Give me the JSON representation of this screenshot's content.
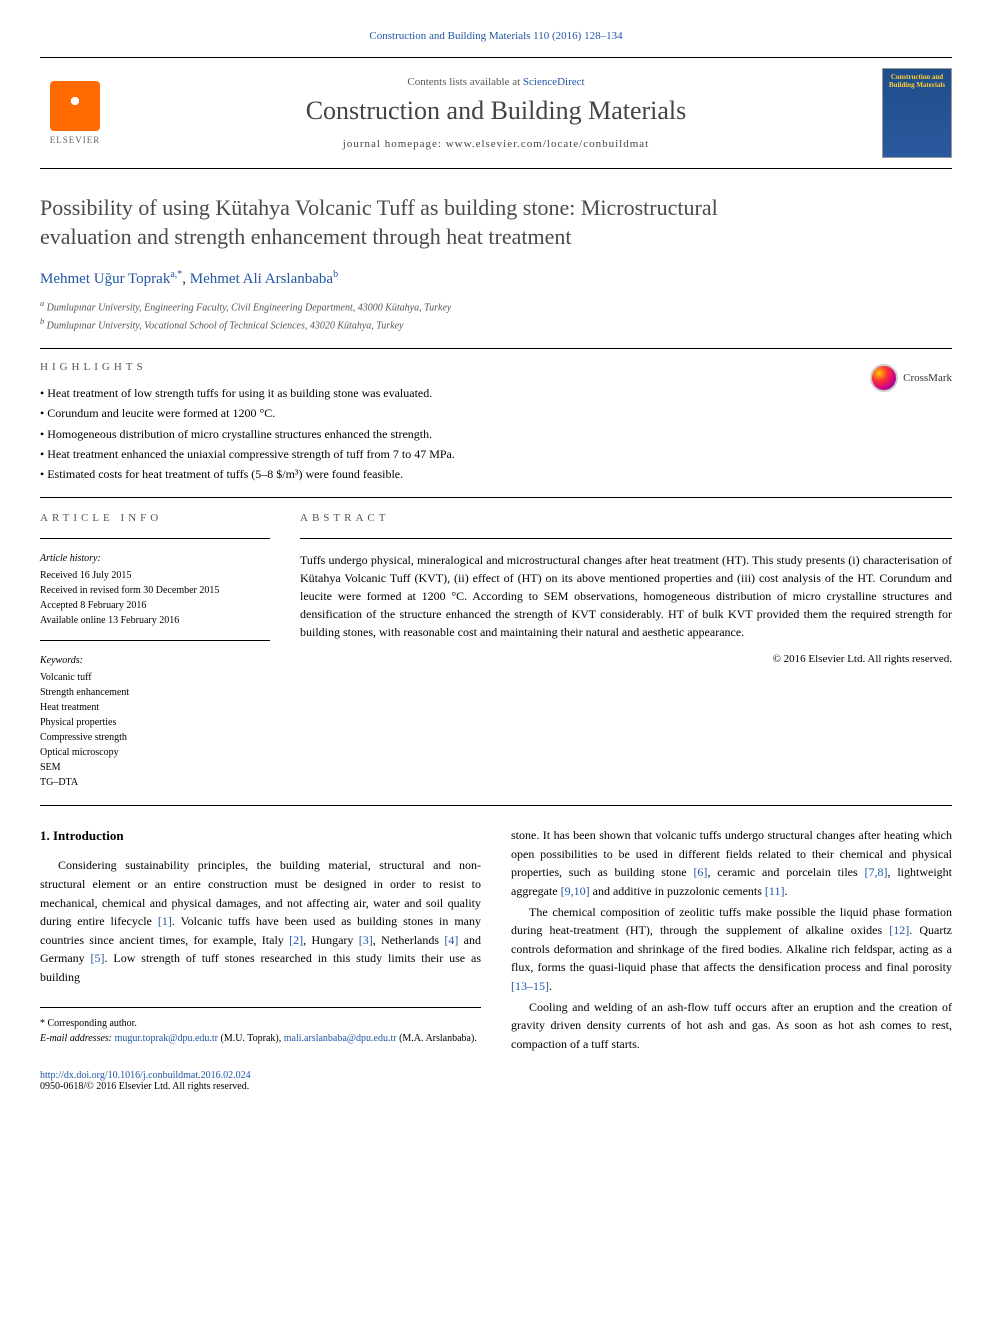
{
  "journal": {
    "citation_line": "Construction and Building Materials 110 (2016) 128–134",
    "contents_prefix": "Contents lists available at ",
    "contents_link": "ScienceDirect",
    "title": "Construction and Building Materials",
    "homepage_prefix": "journal homepage: ",
    "homepage_url": "www.elsevier.com/locate/conbuildmat",
    "publisher_name": "ELSEVIER",
    "cover_title": "Construction and Building Materials"
  },
  "crossmark_label": "CrossMark",
  "article": {
    "title": "Possibility of using Kütahya Volcanic Tuff as building stone: Microstructural evaluation and strength enhancement through heat treatment",
    "authors_html": {
      "a1_name": "Mehmet Uğur Toprak",
      "a1_sup": "a,*",
      "a2_name": "Mehmet Ali Arslanbaba",
      "a2_sup": "b"
    },
    "affiliations": {
      "a": "Dumlupınar University, Engineering Faculty, Civil Engineering Department, 43000 Kütahya, Turkey",
      "b": "Dumlupınar University, Vocational School of Technical Sciences, 43020 Kütahya, Turkey"
    }
  },
  "highlights": {
    "label": "HIGHLIGHTS",
    "items": [
      "Heat treatment of low strength tuffs for using it as building stone was evaluated.",
      "Corundum and leucite were formed at 1200 °C.",
      "Homogeneous distribution of micro crystalline structures enhanced the strength.",
      "Heat treatment enhanced the uniaxial compressive strength of tuff from 7 to 47 MPa.",
      "Estimated costs for heat treatment of tuffs (5–8 $/m³) were found feasible."
    ]
  },
  "article_info": {
    "label": "ARTICLE INFO",
    "history_label": "Article history:",
    "received": "Received 16 July 2015",
    "revised": "Received in revised form 30 December 2015",
    "accepted": "Accepted 8 February 2016",
    "online": "Available online 13 February 2016",
    "keywords_label": "Keywords:",
    "keywords": [
      "Volcanic tuff",
      "Strength enhancement",
      "Heat treatment",
      "Physical properties",
      "Compressive strength",
      "Optical microscopy",
      "SEM",
      "TG–DTA"
    ]
  },
  "abstract": {
    "label": "ABSTRACT",
    "text": "Tuffs undergo physical, mineralogical and microstructural changes after heat treatment (HT). This study presents (i) characterisation of Kütahya Volcanic Tuff (KVT), (ii) effect of (HT) on its above mentioned properties and (iii) cost analysis of the HT. Corundum and leucite were formed at 1200 °C. According to SEM observations, homogeneous distribution of micro crystalline structures and densification of the structure enhanced the strength of KVT considerably. HT of bulk KVT provided them the required strength for building stones, with reasonable cost and maintaining their natural and aesthetic appearance.",
    "copyright": "© 2016 Elsevier Ltd. All rights reserved."
  },
  "body": {
    "heading": "1. Introduction",
    "col1_p1a": "Considering sustainability principles, the building material, structural and non-structural element or an entire construction must be designed in order to resist to mechanical, chemical and physical damages, and not affecting air, water and soil quality during entire lifecycle ",
    "ref1": "[1]",
    "col1_p1b": ". Volcanic tuffs have been used as building stones in many countries since ancient times, for example, Italy ",
    "ref2": "[2]",
    "col1_p1c": ", Hungary ",
    "ref3": "[3]",
    "col1_p1d": ", Netherlands ",
    "ref4": "[4]",
    "col1_p1e": " and Germany ",
    "ref5": "[5]",
    "col1_p1f": ". Low strength of tuff stones researched in this study limits their use as building",
    "col2_p1a": "stone. It has been shown that volcanic tuffs undergo structural changes after heating which open possibilities to be used in different fields related to their chemical and physical properties, such as building stone ",
    "ref6": "[6]",
    "col2_p1b": ", ceramic and porcelain tiles ",
    "ref78": "[7,8]",
    "col2_p1c": ", lightweight aggregate ",
    "ref910": "[9,10]",
    "col2_p1d": " and additive in puzzolonic cements ",
    "ref11": "[11]",
    "col2_p1e": ".",
    "col2_p2a": "The chemical composition of zeolitic tuffs make possible the liquid phase formation during heat-treatment (HT), through the supplement of alkaline oxides ",
    "ref12": "[12]",
    "col2_p2b": ". Quartz controls deformation and shrinkage of the fired bodies. Alkaline rich feldspar, acting as a flux, forms the quasi-liquid phase that affects the densification process and final porosity ",
    "ref1315": "[13–15]",
    "col2_p2c": ".",
    "col2_p3": "Cooling and welding of an ash-flow tuff occurs after an eruption and the creation of gravity driven density currents of hot ash and gas. As soon as hot ash comes to rest, compaction of a tuff starts."
  },
  "footer": {
    "corresponding_label": "* Corresponding author.",
    "email_label": "E-mail addresses: ",
    "email1": "mugur.toprak@dpu.edu.tr",
    "email1_name": " (M.U. Toprak), ",
    "email2": "mali.arslanbaba@dpu.edu.tr",
    "email2_name": " (M.A. Arslanbaba).",
    "doi": "http://dx.doi.org/10.1016/j.conbuildmat.2016.02.024",
    "issn_line": "0950-0618/© 2016 Elsevier Ltd. All rights reserved."
  },
  "colors": {
    "link": "#2356a5",
    "text": "#000000",
    "muted": "#555555",
    "elsevier_orange": "#ff6b00"
  }
}
